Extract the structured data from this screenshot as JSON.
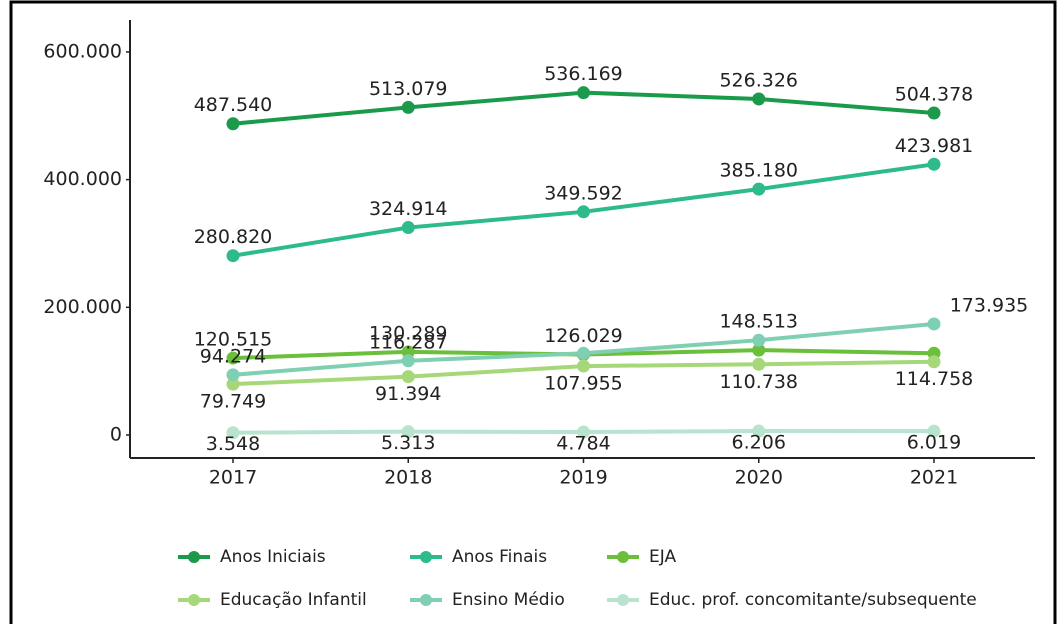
{
  "chart_data": {
    "type": "line",
    "categories": [
      "2017",
      "2018",
      "2019",
      "2020",
      "2021"
    ],
    "ylim": [
      -36000,
      650000
    ],
    "yticks": [
      0,
      {
        "value": 200000,
        "label": "200.000"
      },
      {
        "value": 400000,
        "label": "400.000"
      },
      {
        "value": 600000,
        "label": "600.000"
      }
    ],
    "legend": "bottom",
    "series": [
      {
        "name": "Anos Iniciais",
        "color": "#1a9a4a",
        "values": [
          487540,
          513079,
          536169,
          526326,
          504378
        ],
        "value_labels": [
          "487.540",
          "513.079",
          "536.169",
          "526.326",
          "504.378"
        ]
      },
      {
        "name": "Anos Finais",
        "color": "#2dba8c",
        "values": [
          280820,
          324914,
          349592,
          385180,
          423981
        ],
        "value_labels": [
          "280.820",
          "324.914",
          "349.592",
          "385.180",
          "423.981"
        ]
      },
      {
        "name": "EJA",
        "color": "#6abf3b",
        "values": [
          120515,
          130289,
          126029,
          133000,
          128000
        ],
        "value_labels": [
          "120.515",
          "130.289",
          "126.029",
          null,
          null
        ]
      },
      {
        "name": "Educação Infantil",
        "color": "#a6d87a",
        "values": [
          79749,
          91394,
          107955,
          110738,
          114758
        ],
        "value_labels": [
          "79.749",
          "91.394",
          "107.955",
          "110.738",
          "114.758"
        ]
      },
      {
        "name": "Ensino Médio",
        "color": "#7fcfb3",
        "values": [
          94274,
          116287,
          128000,
          148513,
          173935
        ],
        "value_labels": [
          "94.274",
          "116.287",
          null,
          "148.513",
          "173.935"
        ]
      },
      {
        "name": "Educ. prof. concomitante/subsequente",
        "color": "#b8e3cf",
        "values": [
          3548,
          5313,
          4784,
          6206,
          6019
        ],
        "value_labels": [
          "3.548",
          "5.313",
          "4.784",
          "6.206",
          "6.019"
        ]
      }
    ]
  }
}
